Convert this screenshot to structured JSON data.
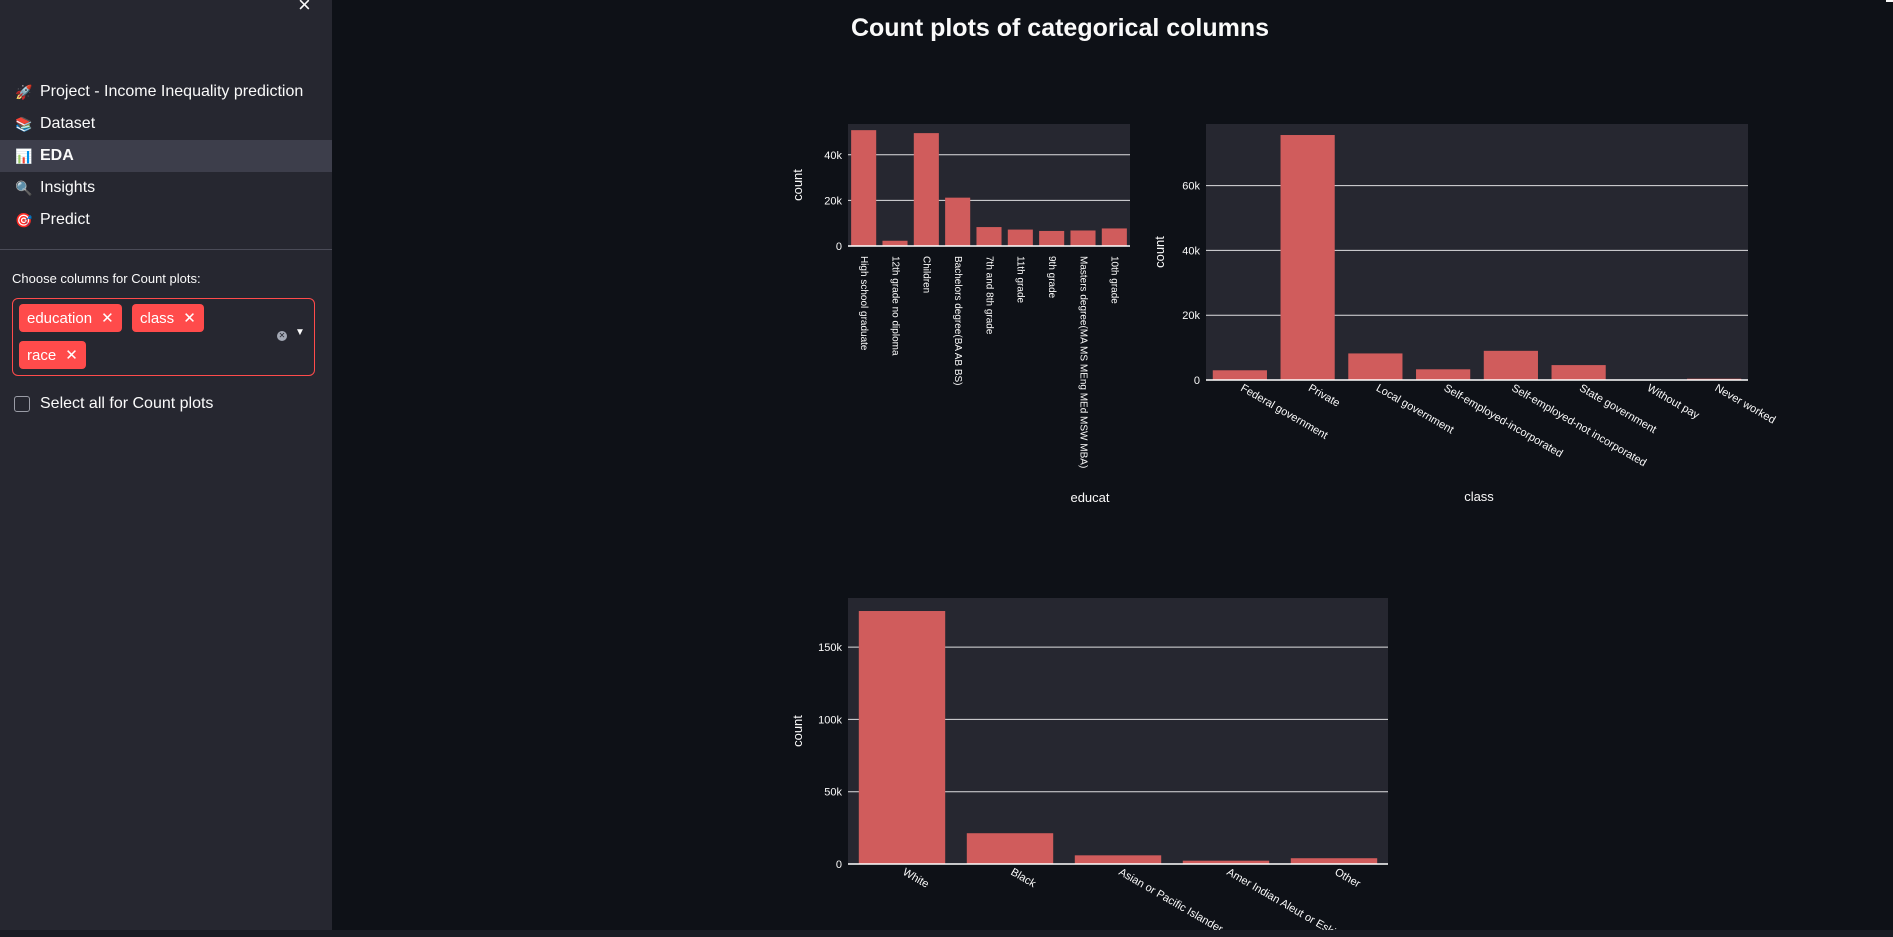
{
  "sidebar": {
    "nav": [
      {
        "icon": "🚀",
        "icon_name": "rocket-icon",
        "label": "Project - Income Inequality prediction",
        "active": false
      },
      {
        "icon": "📚",
        "icon_name": "books-icon",
        "label": "Dataset",
        "active": false
      },
      {
        "icon": "📊",
        "icon_name": "bar-chart-icon",
        "label": "EDA",
        "active": true
      },
      {
        "icon": "🔍",
        "icon_name": "magnifier-icon",
        "label": "Insights",
        "active": false
      },
      {
        "icon": "🎯",
        "icon_name": "target-icon",
        "label": "Predict",
        "active": false
      }
    ],
    "multiselect": {
      "label": "Choose columns for Count plots:",
      "selected": [
        "education",
        "class",
        "race"
      ]
    },
    "select_all_label": "Select all for Count plots"
  },
  "main": {
    "title": "Count plots of categorical columns"
  },
  "colors": {
    "bar": "#d05c5c",
    "plot_bg": "#262730",
    "page_bg": "#0e1117",
    "accent": "#ff4b4b"
  },
  "chart_data": [
    {
      "type": "bar",
      "xlabel": "educat",
      "ylabel": "count",
      "categories": [
        "High school graduate",
        "12th grade no diploma",
        "Children",
        "Bachelors degree(BA AB BS)",
        "7th and 8th grade",
        "11th grade",
        "9th grade",
        "Masters degree(MA MS MEng MEd MSW MBA)",
        "10th grade"
      ],
      "values": [
        50800,
        2300,
        49500,
        21200,
        8300,
        7200,
        6600,
        6800,
        7700
      ],
      "yticks": [
        0,
        20000,
        40000
      ],
      "ytick_labels": [
        "0",
        "20k",
        "40k"
      ],
      "ylim": [
        0,
        53500
      ],
      "grid": true
    },
    {
      "type": "bar",
      "xlabel": "class",
      "ylabel": "count",
      "categories": [
        "Federal government",
        "Private",
        "Local government",
        "Self-employed-incorporated",
        "Self-employed-not incorporated",
        "State government",
        "Without pay",
        "Never worked"
      ],
      "values": [
        3000,
        75600,
        8200,
        3300,
        9000,
        4600,
        150,
        400
      ],
      "yticks": [
        0,
        20000,
        40000,
        60000
      ],
      "ytick_labels": [
        "0",
        "20k",
        "40k",
        "60k"
      ],
      "ylim": [
        0,
        79000
      ],
      "grid": true
    },
    {
      "type": "bar",
      "xlabel": "",
      "ylabel": "count",
      "categories": [
        "White",
        "Black",
        "Asian or Pacific Islander",
        "Amer Indian Aleut or Eskimo",
        "Other"
      ],
      "values": [
        175000,
        21300,
        6000,
        2300,
        4000
      ],
      "yticks": [
        0,
        50000,
        100000,
        150000
      ],
      "ytick_labels": [
        "0",
        "50k",
        "100k",
        "150k"
      ],
      "ylim": [
        0,
        184000
      ],
      "grid": true
    }
  ]
}
